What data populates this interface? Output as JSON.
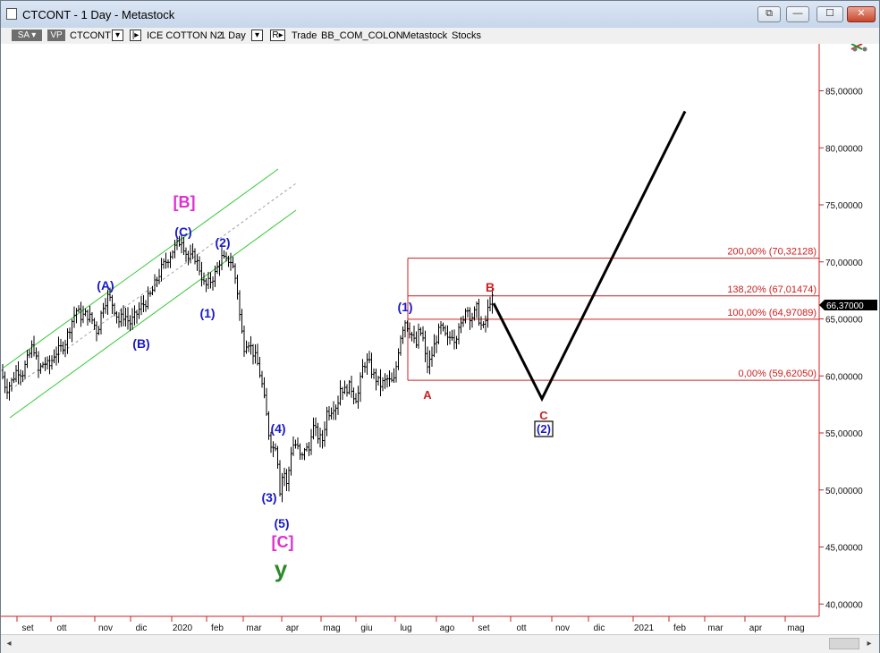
{
  "window": {
    "title": "CTCONT - 1 Day - Metastock"
  },
  "toolbar": {
    "sa": "SA",
    "vp": "VP",
    "symbol": "CTCONT",
    "security_name": "ICE COTTON N2",
    "period": "1 Day",
    "trade": "Trade",
    "template": "BB_COM_COLON",
    "source": "Metastock",
    "type": "Stocks"
  },
  "colors": {
    "wave_blue": "#1a1ac8",
    "wave_magenta": "#e030d0",
    "wave_green": "#2a8a2a",
    "fib_red": "#cc2020",
    "channel_green": "#34c834",
    "price_axis": "#cc2020"
  },
  "chart_data": {
    "type": "ohlc-bar",
    "title": "",
    "current_price_label": "66,37000",
    "y_ticks": [
      {
        "value": 85,
        "label": "85,00000"
      },
      {
        "value": 80,
        "label": "80,00000"
      },
      {
        "value": 75,
        "label": "75,00000"
      },
      {
        "value": 70,
        "label": "70,00000"
      },
      {
        "value": 65,
        "label": "65,00000"
      },
      {
        "value": 60,
        "label": "60,00000"
      },
      {
        "value": 55,
        "label": "55,00000"
      },
      {
        "value": 50,
        "label": "50,00000"
      },
      {
        "value": 45,
        "label": "45,00000"
      },
      {
        "value": 40,
        "label": "40,00000"
      }
    ],
    "ylim": [
      38.0,
      92.0
    ],
    "x_ticks": [
      "set",
      "ott",
      "nov",
      "dic",
      "2020",
      "feb",
      "mar",
      "apr",
      "mag",
      "giu",
      "lug",
      "ago",
      "set",
      "ott",
      "nov",
      "dic",
      "2021",
      "feb",
      "mar",
      "apr",
      "mag"
    ],
    "price_path": [
      [
        0,
        60.5
      ],
      [
        6,
        58.8
      ],
      [
        12,
        59.5
      ],
      [
        18,
        60.6
      ],
      [
        24,
        60.2
      ],
      [
        30,
        61.5
      ],
      [
        36,
        62.8
      ],
      [
        42,
        60.4
      ],
      [
        48,
        61.2
      ],
      [
        54,
        60.8
      ],
      [
        60,
        62.0
      ],
      [
        66,
        62.3
      ],
      [
        72,
        63.0
      ],
      [
        78,
        64.5
      ],
      [
        84,
        65.8
      ],
      [
        90,
        65.2
      ],
      [
        96,
        65.4
      ],
      [
        102,
        64.9
      ],
      [
        108,
        63.8
      ],
      [
        114,
        66.2
      ],
      [
        120,
        67.0
      ],
      [
        126,
        66.1
      ],
      [
        132,
        64.8
      ],
      [
        138,
        65.4
      ],
      [
        144,
        64.6
      ],
      [
        150,
        65.2
      ],
      [
        156,
        66.0
      ],
      [
        162,
        66.5
      ],
      [
        168,
        67.2
      ],
      [
        174,
        68.4
      ],
      [
        180,
        69.5
      ],
      [
        186,
        70.2
      ],
      [
        192,
        71.0
      ],
      [
        198,
        71.6
      ],
      [
        202,
        72.0
      ],
      [
        206,
        71.0
      ],
      [
        210,
        70.2
      ],
      [
        216,
        70.6
      ],
      [
        222,
        69.4
      ],
      [
        228,
        67.8
      ],
      [
        234,
        68.3
      ],
      [
        240,
        69.0
      ],
      [
        246,
        70.4
      ],
      [
        252,
        70.0
      ],
      [
        256,
        70.3
      ],
      [
        260,
        69.4
      ],
      [
        264,
        67.8
      ],
      [
        268,
        64.5
      ],
      [
        272,
        62.6
      ],
      [
        276,
        63.2
      ],
      [
        280,
        62.4
      ],
      [
        284,
        61.7
      ],
      [
        288,
        60.8
      ],
      [
        292,
        59.2
      ],
      [
        296,
        57.1
      ],
      [
        300,
        54.7
      ],
      [
        304,
        53.6
      ],
      [
        308,
        54.1
      ],
      [
        312,
        50.0
      ],
      [
        316,
        51.9
      ],
      [
        320,
        50.2
      ],
      [
        324,
        53.3
      ],
      [
        328,
        54.2
      ],
      [
        332,
        53.6
      ],
      [
        336,
        52.5
      ],
      [
        340,
        53.9
      ],
      [
        344,
        53.2
      ],
      [
        348,
        55.7
      ],
      [
        352,
        55.1
      ],
      [
        356,
        54.5
      ],
      [
        360,
        54.4
      ],
      [
        364,
        56.8
      ],
      [
        368,
        56.9
      ],
      [
        372,
        57.4
      ],
      [
        376,
        57.4
      ],
      [
        380,
        59.2
      ],
      [
        384,
        58.6
      ],
      [
        388,
        59.1
      ],
      [
        392,
        58.9
      ],
      [
        396,
        58.0
      ],
      [
        400,
        58.5
      ],
      [
        404,
        60.6
      ],
      [
        408,
        61.3
      ],
      [
        412,
        61.0
      ],
      [
        416,
        60.1
      ],
      [
        420,
        59.7
      ],
      [
        424,
        59.2
      ],
      [
        428,
        59.4
      ],
      [
        432,
        59.7
      ],
      [
        436,
        59.4
      ],
      [
        440,
        59.6
      ],
      [
        444,
        62.1
      ],
      [
        448,
        64.0
      ],
      [
        452,
        64.8
      ],
      [
        456,
        64.2
      ],
      [
        460,
        63.5
      ],
      [
        464,
        62.5
      ],
      [
        468,
        64.1
      ],
      [
        472,
        63.2
      ],
      [
        476,
        60.8
      ],
      [
        480,
        61.3
      ],
      [
        484,
        62.5
      ],
      [
        488,
        63.6
      ],
      [
        492,
        64.2
      ],
      [
        496,
        63.6
      ],
      [
        500,
        63.0
      ],
      [
        504,
        63.8
      ],
      [
        508,
        63.1
      ],
      [
        512,
        64.6
      ],
      [
        516,
        64.1
      ],
      [
        520,
        66.3
      ],
      [
        524,
        65.3
      ],
      [
        528,
        65.2
      ],
      [
        532,
        65.9
      ],
      [
        536,
        64.5
      ],
      [
        540,
        64.1
      ],
      [
        544,
        65.6
      ],
      [
        548,
        67.0
      ],
      [
        551,
        66.4
      ]
    ],
    "fibonacci_levels": [
      {
        "label": "200,00% (70,32128)",
        "value": 70.32128
      },
      {
        "label": "138,20% (67,01474)",
        "value": 67.01474
      },
      {
        "label": "100,00% (64,97089)",
        "value": 64.97089
      },
      {
        "label": "0,00% (59,62050)",
        "value": 59.6205
      }
    ],
    "projection_path": [
      {
        "date_index": 551,
        "value": 66.37
      },
      {
        "date_index": 605,
        "value": 58.0
      },
      {
        "date_index": 765,
        "value": 83.2
      }
    ],
    "wave_labels": [
      {
        "text": "(A)",
        "color": "blue"
      },
      {
        "text": "(B)",
        "color": "blue"
      },
      {
        "text": "(C)",
        "color": "blue"
      },
      {
        "text": "[B]",
        "color": "magenta"
      },
      {
        "text": "(1)",
        "color": "blue"
      },
      {
        "text": "(2)",
        "color": "blue"
      },
      {
        "text": "(3)",
        "color": "blue"
      },
      {
        "text": "(4)",
        "color": "blue"
      },
      {
        "text": "(5)",
        "color": "blue"
      },
      {
        "text": "[C]",
        "color": "magenta"
      },
      {
        "text": "y",
        "color": "green"
      },
      {
        "text": "(1)",
        "color": "blue"
      },
      {
        "text": "A",
        "color": "red"
      },
      {
        "text": "B",
        "color": "red"
      },
      {
        "text": "C",
        "color": "red"
      },
      {
        "text": "(2)",
        "color": "blue"
      }
    ]
  }
}
